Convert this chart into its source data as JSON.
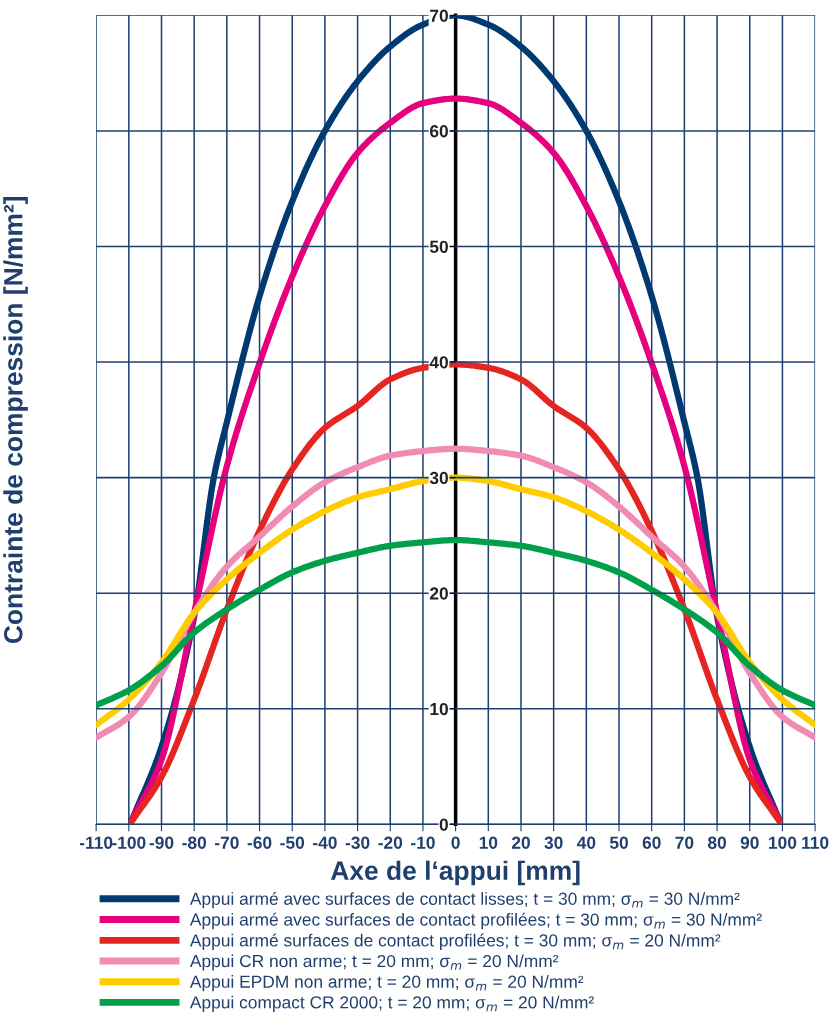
{
  "chart_data": {
    "type": "line",
    "xlabel": "Axe de l‘appui [mm]",
    "ylabel": "Contrainte de compression [N/mm²]",
    "grid": true,
    "legend": "bottom",
    "marker": "none",
    "line_style": "solid",
    "xlim": [
      -110,
      110
    ],
    "xticks": [
      -110,
      -100,
      -90,
      -80,
      -70,
      -60,
      -50,
      -40,
      -30,
      -20,
      -10,
      0,
      10,
      20,
      30,
      40,
      50,
      60,
      70,
      80,
      90,
      100,
      110
    ],
    "ylim": [
      0,
      70
    ],
    "yticks": [
      0,
      10,
      20,
      30,
      40,
      50,
      60,
      70
    ],
    "series": [
      {
        "name": "Appui armé avec surfaces de contact lisses; t = 30 mm; σ$_{m}$ = 30 N/mm²",
        "color": "#003a70",
        "x": [
          -99,
          -90,
          -80,
          -74,
          -70,
          -60,
          -50,
          -40,
          -30,
          -20,
          -10,
          0,
          10,
          20,
          30,
          40,
          50,
          60,
          70,
          74,
          80,
          90,
          99
        ],
        "values": [
          0.4,
          6.7,
          18,
          30,
          34.8,
          45.7,
          53.9,
          60,
          64.3,
          67.3,
          69.2,
          70,
          69.2,
          67.3,
          64.3,
          60,
          53.9,
          45.7,
          34.8,
          30,
          18,
          6.7,
          0.4
        ]
      },
      {
        "name": "Appui armé avec surfaces de contact profilées; t = 30 mm; σ$_{m}$ = 30 N/mm²",
        "color": "#e6007e",
        "x": [
          -99,
          -90,
          -80,
          -70,
          -60,
          -50,
          -40,
          -30,
          -20,
          -10,
          0,
          10,
          20,
          30,
          40,
          50,
          60,
          70,
          80,
          90,
          99
        ],
        "values": [
          0.4,
          5.6,
          18.3,
          31,
          39.9,
          47.4,
          53.5,
          58.1,
          60.7,
          62.4,
          62.8,
          62.4,
          60.7,
          58.1,
          53.5,
          47.4,
          39.9,
          31,
          18.3,
          5.6,
          0.4
        ]
      },
      {
        "name": "Appui armé surfaces de contact profilées; t = 30 mm; σ$_{m}$ = 20 N/mm²",
        "color": "#e52521",
        "x": [
          -99,
          -90,
          -80,
          -70,
          -60,
          -50,
          -40,
          -30,
          -20,
          -10,
          0,
          10,
          20,
          30,
          40,
          50,
          60,
          70,
          80,
          90,
          99
        ],
        "values": [
          0.3,
          4.1,
          10.8,
          18.6,
          25.4,
          30.7,
          34.3,
          36.2,
          38.5,
          39.5,
          39.8,
          39.5,
          38.5,
          36.2,
          34.3,
          30.7,
          25.4,
          18.6,
          10.8,
          4.1,
          0.3
        ]
      },
      {
        "name": "Appui CR non arme; t = 20 mm; σ$_{m}$ = 20 N/mm²",
        "color": "#f08cb4",
        "x": [
          -110,
          -100,
          -90,
          -80,
          -70,
          -60,
          -50,
          -40,
          -30,
          -20,
          -10,
          0,
          10,
          20,
          30,
          40,
          50,
          60,
          70,
          80,
          90,
          100,
          110
        ],
        "values": [
          7.5,
          9.3,
          13.1,
          18.3,
          22.3,
          24.9,
          27.5,
          29.6,
          30.9,
          31.9,
          32.3,
          32.5,
          32.3,
          31.9,
          30.9,
          29.6,
          27.5,
          24.9,
          22.3,
          18.3,
          13.1,
          9.3,
          7.5
        ]
      },
      {
        "name": "Appui EPDM non arme; t = 20 mm; σ$_{m}$ = 20 N/mm²",
        "color": "#ffcc00",
        "x": [
          -110,
          -100,
          -90,
          -80,
          -70,
          -60,
          -50,
          -40,
          -30,
          -20,
          -10,
          0,
          10,
          20,
          30,
          40,
          50,
          60,
          70,
          80,
          90,
          100,
          110
        ],
        "values": [
          8.6,
          10.8,
          14,
          18.3,
          21.2,
          23.5,
          25.5,
          27.1,
          28.3,
          29,
          29.7,
          30,
          29.7,
          29,
          28.3,
          27.1,
          25.5,
          23.5,
          21.2,
          18.3,
          14,
          10.8,
          8.6
        ]
      },
      {
        "name": "Appui compact CR 2000; t = 20 mm; σ$_{m}$ = 20 N/mm²",
        "color": "#00a04b",
        "x": [
          -110,
          -100,
          -90,
          -80,
          -70,
          -60,
          -50,
          -40,
          -30,
          -20,
          -10,
          0,
          10,
          20,
          30,
          40,
          50,
          60,
          70,
          80,
          90,
          100,
          110
        ],
        "values": [
          10.3,
          11.6,
          13.7,
          16.6,
          18.6,
          20.3,
          21.8,
          22.8,
          23.5,
          24.1,
          24.4,
          24.6,
          24.4,
          24.1,
          23.5,
          22.8,
          21.8,
          20.3,
          18.6,
          16.6,
          13.7,
          11.6,
          10.3
        ]
      }
    ]
  }
}
